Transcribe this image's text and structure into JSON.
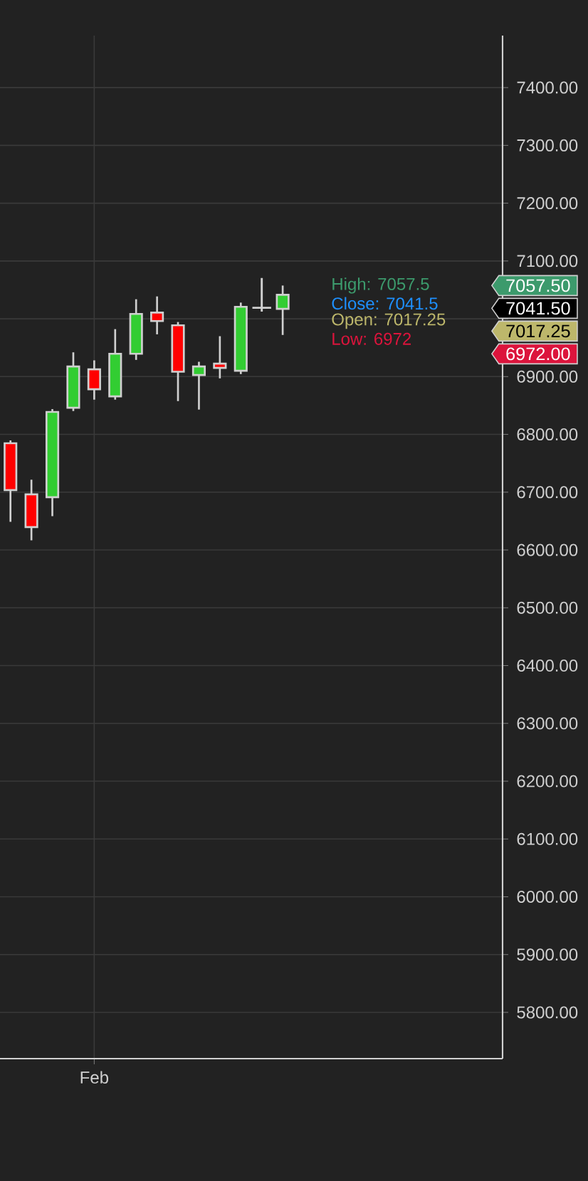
{
  "chart_data": {
    "type": "candlestick",
    "categories": [
      null,
      null,
      null,
      null,
      "Feb",
      null,
      null,
      null,
      null,
      null,
      null,
      null,
      null,
      null,
      null,
      null,
      null,
      null,
      null,
      null,
      null,
      null,
      null,
      null
    ],
    "ohlc": [
      [
        6784.7,
        6789.6,
        6648.7,
        6703.6
      ],
      [
        6696.2,
        6721.6,
        6616.7,
        6639.7
      ],
      [
        6691.3,
        6843.7,
        6658.5,
        6838.8
      ],
      [
        6846.1,
        6942.0,
        6840.4,
        6917.4
      ],
      [
        6912.5,
        6928.1,
        6860.1,
        6878.1
      ],
      [
        6865.8,
        6982.1,
        6860.1,
        6939.5
      ],
      [
        6939.5,
        7033.8,
        6928.9,
        7008.4
      ],
      [
        7010.8,
        7038.7,
        6973.1,
        6996.1
      ],
      [
        6988.7,
        6994.4,
        6857.6,
        6908.4
      ],
      [
        6902.7,
        6925.6,
        6842.9,
        6917.4
      ],
      [
        6922.3,
        6969.9,
        6896.9,
        6915.0
      ],
      [
        6910.0,
        7028.0,
        6904.3,
        7020.7
      ],
      [
        7019.0,
        7070.6,
        7012.5,
        7019.0
      ],
      [
        7017.25,
        7057.5,
        6972,
        7041.5
      ],
      null,
      null,
      null,
      null,
      null,
      null,
      null,
      null,
      null,
      null
    ],
    "colors": [
      "#ff0000",
      "#ff0000",
      "#32cd32",
      "#32cd32",
      "#ff0000",
      "#32cd32",
      "#32cd32",
      "#ff0000",
      "#ff0000",
      "#32cd32",
      "#ff0000",
      "#32cd32",
      "#d0d0d0",
      "#32cd32",
      null,
      null,
      null,
      null,
      null,
      null,
      null,
      null,
      null,
      null
    ],
    "ylim": [
      5720,
      7490
    ],
    "yticks": [
      {
        "value": 5800,
        "label": "5800.00"
      },
      {
        "value": 5900,
        "label": "5900.00"
      },
      {
        "value": 6000,
        "label": "6000.00"
      },
      {
        "value": 6100,
        "label": "6100.00"
      },
      {
        "value": 6200,
        "label": "6200.00"
      },
      {
        "value": 6300,
        "label": "6300.00"
      },
      {
        "value": 6400,
        "label": "6400.00"
      },
      {
        "value": 6500,
        "label": "6500.00"
      },
      {
        "value": 6600,
        "label": "6600.00"
      },
      {
        "value": 6700,
        "label": "6700.00"
      },
      {
        "value": 6800,
        "label": "6800.00"
      },
      {
        "value": 6900,
        "label": "6900.00"
      },
      {
        "value": 7000,
        "label": null
      },
      {
        "value": 7100,
        "label": "7100.00"
      },
      {
        "value": 7200,
        "label": "7200.00"
      },
      {
        "value": 7300,
        "label": "7300.00"
      },
      {
        "value": 7400,
        "label": "7400.00"
      }
    ],
    "grid": true,
    "annotations": [
      "High: 7057.5",
      "Close: 7041.5",
      "Open: 7017.25",
      "Low: 6972",
      "7057.50",
      "7041.50",
      "7017.25",
      "6972.00"
    ]
  }
}
